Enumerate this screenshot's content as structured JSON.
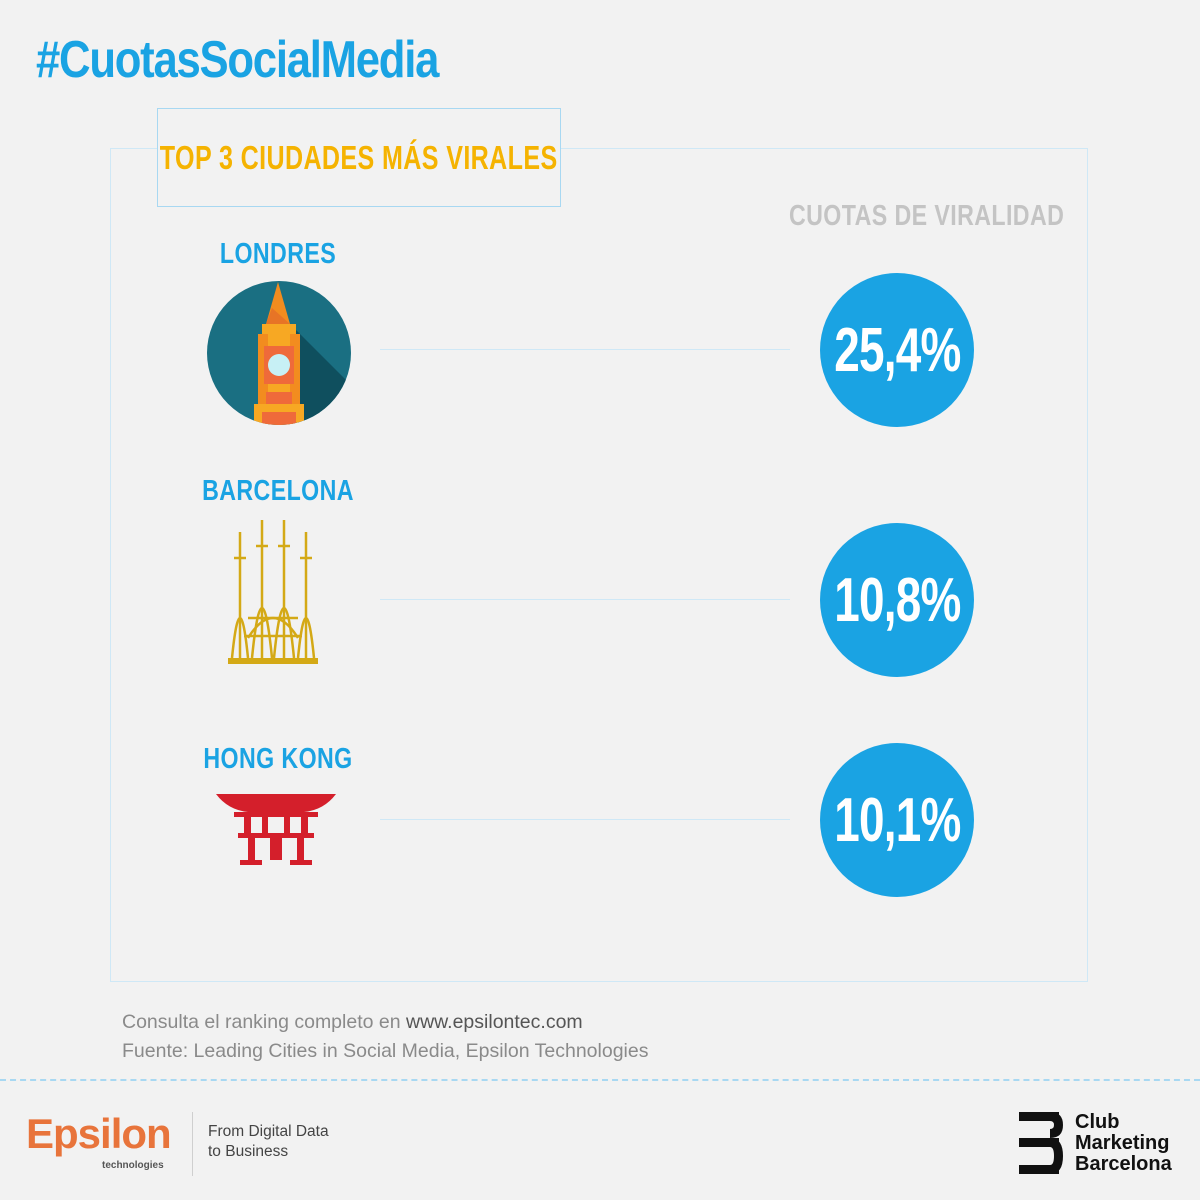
{
  "hashtag": "#CuotasSocialMedia",
  "title": "TOP 3 CIUDADES MÁS VIRALES",
  "column_header": "CUOTAS DE VIRALIDAD",
  "cities": [
    {
      "name": "LONDRES",
      "share": "25,4%",
      "icon": "big-ben-icon",
      "color": "#1aa3e3"
    },
    {
      "name": "BARCELONA",
      "share": "10,8%",
      "icon": "sagrada-familia-icon",
      "color": "#1aa3e3"
    },
    {
      "name": "HONG KONG",
      "share": "10,1%",
      "icon": "hong-kong-gate-icon",
      "color": "#1aa3e3"
    }
  ],
  "footer": {
    "consult_prefix": "Consulta el ranking completo en ",
    "consult_url": "www.epsilontec.com",
    "source": "Fuente: Leading Cities in Social Media, Epsilon Technologies"
  },
  "brands": {
    "epsilon_name": "Epsilon",
    "epsilon_sub": "technologies",
    "epsilon_tagline_1": "From Digital Data",
    "epsilon_tagline_2": "to Business",
    "club_line_1": "Club",
    "club_line_2": "Marketing",
    "club_line_3": "Barcelona"
  },
  "colors": {
    "accent_blue": "#1aa3e3",
    "title_yellow": "#f5b301",
    "epsilon_orange": "#e8743b",
    "landmark_gold": "#d4a916",
    "landmark_red": "#d41f2b"
  }
}
